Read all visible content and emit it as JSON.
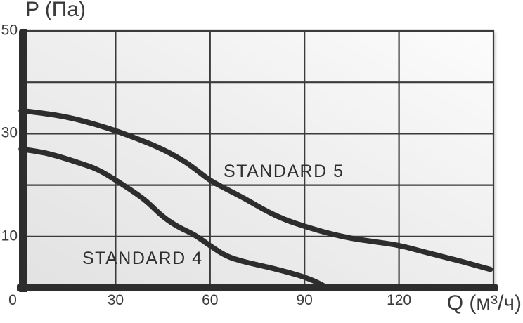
{
  "chart_data": {
    "type": "line",
    "title": "",
    "xlabel": "Q (м³/ч)",
    "ylabel": "P (Па)",
    "xlim": [
      0,
      150
    ],
    "ylim": [
      0,
      50
    ],
    "x_ticks": [
      0,
      30,
      60,
      90,
      120
    ],
    "y_ticks": [
      50,
      30,
      10
    ],
    "x_grid_lines": [
      30,
      60,
      90,
      120,
      150
    ],
    "y_grid_lines": [
      10,
      20,
      30,
      40,
      50
    ],
    "grid": true,
    "legend_position": "inline-labels-on-plot",
    "series": [
      {
        "name": "STANDARD 5",
        "points": [
          [
            0,
            34.5
          ],
          [
            7,
            34.0
          ],
          [
            15,
            33.2
          ],
          [
            22,
            32.1
          ],
          [
            30,
            30.6
          ],
          [
            37,
            29.0
          ],
          [
            45,
            27.0
          ],
          [
            52,
            24.6
          ],
          [
            56,
            22.8
          ],
          [
            60,
            20.9
          ],
          [
            64,
            19.6
          ],
          [
            71,
            17.4
          ],
          [
            78,
            14.9
          ],
          [
            84,
            13.2
          ],
          [
            90,
            12.0
          ],
          [
            97,
            10.7
          ],
          [
            105,
            9.6
          ],
          [
            112,
            9.0
          ],
          [
            120,
            8.3
          ],
          [
            128,
            7.0
          ],
          [
            135,
            5.9
          ],
          [
            142,
            4.8
          ],
          [
            149,
            3.6
          ]
        ]
      },
      {
        "name": "STANDARD 4",
        "points": [
          [
            0,
            27.0
          ],
          [
            6,
            26.5
          ],
          [
            12,
            25.6
          ],
          [
            18,
            24.4
          ],
          [
            24,
            23.2
          ],
          [
            30,
            21.0
          ],
          [
            36,
            18.6
          ],
          [
            40,
            16.8
          ],
          [
            45,
            13.8
          ],
          [
            50,
            11.8
          ],
          [
            55,
            10.4
          ],
          [
            60,
            8.2
          ],
          [
            65,
            6.2
          ],
          [
            70,
            5.2
          ],
          [
            75,
            4.5
          ],
          [
            80,
            3.8
          ],
          [
            85,
            3.0
          ],
          [
            90,
            2.1
          ],
          [
            94,
            1.1
          ],
          [
            97,
            0.1
          ]
        ]
      }
    ]
  },
  "colors": {
    "ink": "#2d2d2d",
    "grid": "#3b3b3b",
    "text": "#3a3a3a",
    "plot_bg_from": "#e2e2e2",
    "plot_bg_to": "#fcfcfc"
  }
}
